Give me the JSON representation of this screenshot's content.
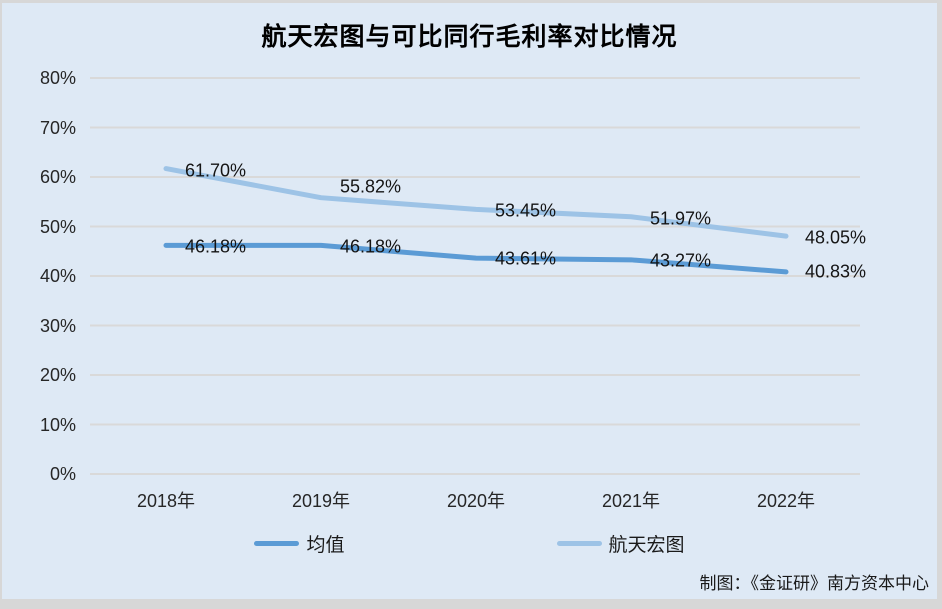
{
  "title": "航天宏图与可比同行毛利率对比情况",
  "attribution": "制图：《金证研》南方资本中心",
  "colors": {
    "surface_background": "#dee9f5",
    "frame_background": "#d7d7d7",
    "gridline": "#d9d9d9",
    "series_mean": "#5b9bd5",
    "series_hangtianhongtu": "#9dc3e6",
    "text": "#1a1a1a"
  },
  "chart_data": {
    "type": "line",
    "title": "航天宏图与可比同行毛利率对比情况",
    "categories": [
      "2018年",
      "2019年",
      "2020年",
      "2021年",
      "2022年"
    ],
    "series": [
      {
        "name": "均值",
        "color": "#5b9bd5",
        "values": [
          46.18,
          46.18,
          43.61,
          43.27,
          40.83
        ],
        "labels": [
          "46.18%",
          "46.18%",
          "43.61%",
          "43.27%",
          "40.83%"
        ],
        "label_dy": [
          2,
          2,
          1,
          1,
          0
        ]
      },
      {
        "name": "航天宏图",
        "color": "#9dc3e6",
        "values": [
          61.7,
          55.82,
          53.45,
          51.97,
          48.05
        ],
        "labels": [
          "61.70%",
          "55.82%",
          "53.45%",
          "51.97%",
          "48.05%"
        ],
        "label_dy": [
          2,
          -11,
          2,
          2,
          2
        ]
      }
    ],
    "y_ticks": [
      "0%",
      "10%",
      "20%",
      "30%",
      "40%",
      "50%",
      "60%",
      "70%",
      "80%"
    ],
    "ylim": [
      0,
      80
    ],
    "xlabel": "",
    "ylabel": "",
    "grid": "horizontal-only",
    "legend_position": "bottom",
    "data_labels": true
  }
}
